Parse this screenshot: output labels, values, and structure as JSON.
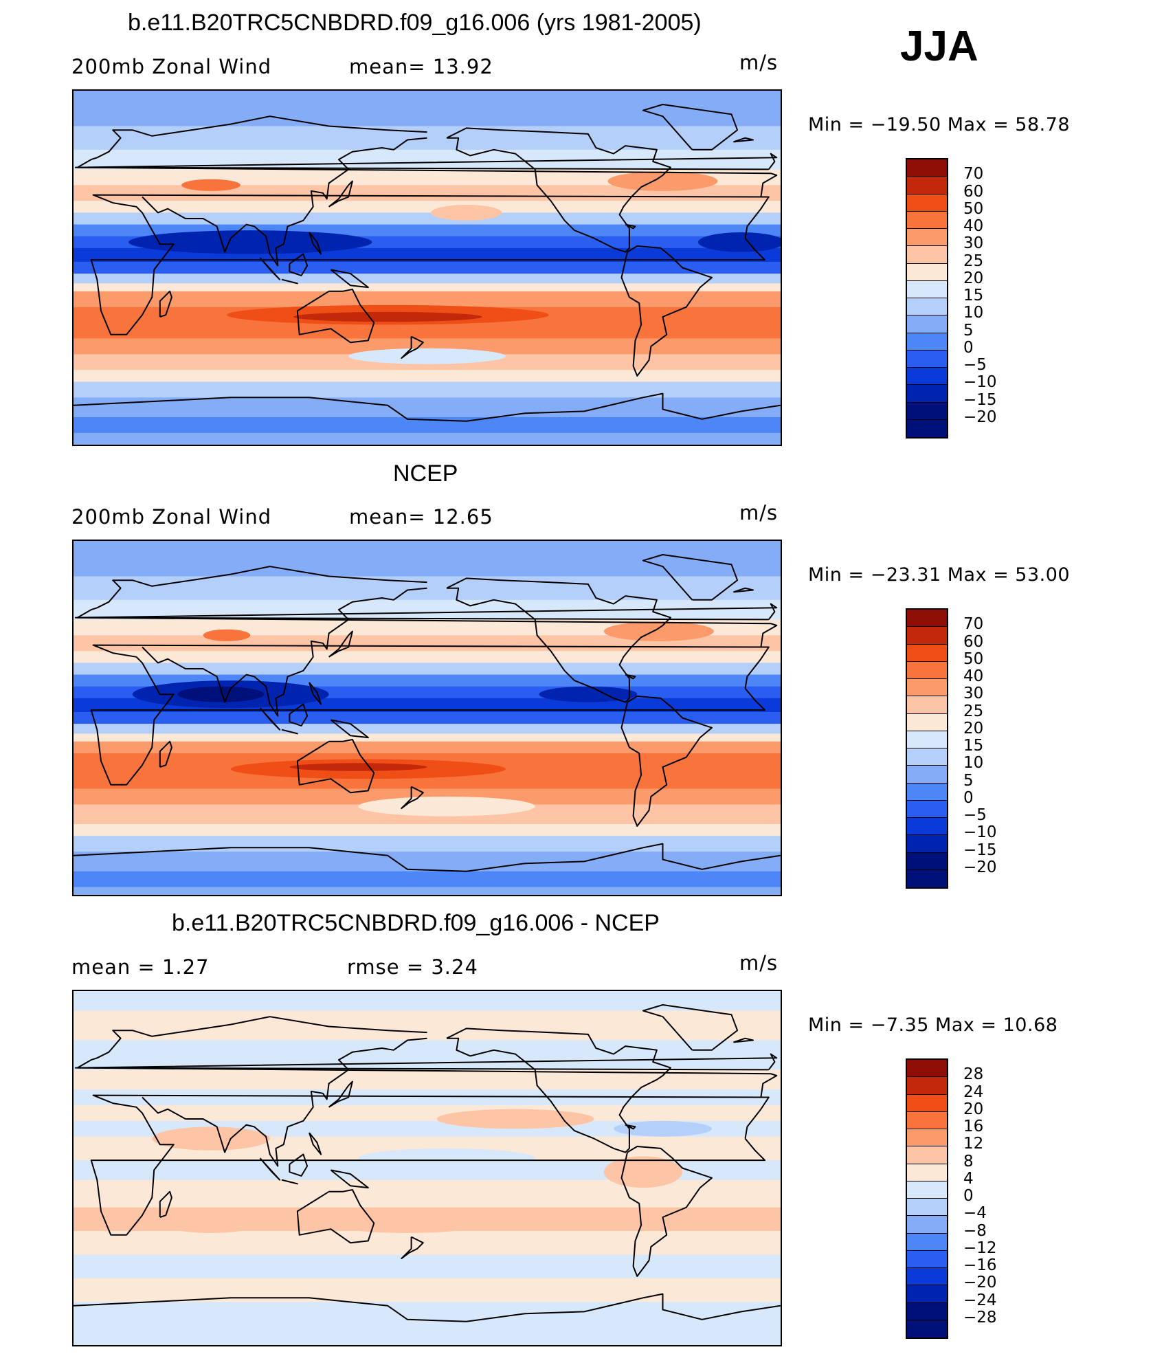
{
  "season": "JJA",
  "colors": {
    "c-20": "#00107a",
    "c-15": "#0024b0",
    "c-10": "#0a3ad8",
    "c-5": "#2a5ef0",
    "c0": "#4d86f6",
    "c5": "#84acf7",
    "c10": "#b4cff9",
    "c15": "#d8e8fb",
    "c20": "#fce8d6",
    "c25": "#fdc5a6",
    "c30": "#fb9b6b",
    "c40": "#f9743c",
    "c50": "#f04e17",
    "c60": "#c4280a",
    "c70": "#8e0d04",
    "coast": "#000000"
  },
  "panels": [
    {
      "title": "b.e11.B20TRC5CNBDRD.f09_g16.006 (yrs 1981-2005)",
      "left_label": "200mb  Zonal  Wind",
      "mid_label": "mean=   13.92",
      "units": "m/s",
      "minmax": "Min  =  −19.50  Max  =    58.78",
      "colorbar_labels": [
        "70",
        "60",
        "50",
        "40",
        "30",
        "25",
        "20",
        "15",
        "10",
        "5",
        "0",
        "−5",
        "−10",
        "−15",
        "−20"
      ]
    },
    {
      "title": "NCEP",
      "left_label": "200mb  Zonal  Wind",
      "mid_label": "mean=   12.65",
      "units": "m/s",
      "minmax": "Min  =  −23.31  Max  =    53.00",
      "colorbar_labels": [
        "70",
        "60",
        "50",
        "40",
        "30",
        "25",
        "20",
        "15",
        "10",
        "5",
        "0",
        "−5",
        "−10",
        "−15",
        "−20"
      ]
    },
    {
      "title": "b.e11.B20TRC5CNBDRD.f09_g16.006 - NCEP",
      "left_label": "mean  =     1.27",
      "mid_label": "rmse  =     3.24",
      "units": "m/s",
      "minmax": "Min  =    −7.35  Max  =    10.68",
      "colorbar_labels": [
        "28",
        "24",
        "20",
        "16",
        "12",
        "8",
        "4",
        "0",
        "−4",
        "−8",
        "−12",
        "−16",
        "−20",
        "−24",
        "−28"
      ]
    }
  ],
  "map_fields": [
    {
      "bands": [
        {
          "lat": 90,
          "level": "c5"
        },
        {
          "lat": 72,
          "level": "c10"
        },
        {
          "lat": 60,
          "level": "c15"
        },
        {
          "lat": 50,
          "level": "c20"
        },
        {
          "lat": 42,
          "level": "c25"
        },
        {
          "lat": 34,
          "level": "c20"
        },
        {
          "lat": 28,
          "level": "c10"
        },
        {
          "lat": 22,
          "level": "c0"
        },
        {
          "lat": 16,
          "level": "c-5"
        },
        {
          "lat": 10,
          "level": "c-10"
        },
        {
          "lat": 3,
          "level": "c-5"
        },
        {
          "lat": -3,
          "level": "c10"
        },
        {
          "lat": -8,
          "level": "c20"
        },
        {
          "lat": -12,
          "level": "c30"
        },
        {
          "lat": -20,
          "level": "c40"
        },
        {
          "lat": -36,
          "level": "c30"
        },
        {
          "lat": -44,
          "level": "c25"
        },
        {
          "lat": -52,
          "level": "c20"
        },
        {
          "lat": -58,
          "level": "c10"
        },
        {
          "lat": -66,
          "level": "c5"
        },
        {
          "lat": -76,
          "level": "c0"
        },
        {
          "lat": -84,
          "level": "c5"
        }
      ],
      "blobs": [
        {
          "lon": 90,
          "lat": 13,
          "rlon": 62,
          "rlat": 6,
          "level": "c-15"
        },
        {
          "lon": 340,
          "lat": 13,
          "rlon": 22,
          "rlat": 5,
          "level": "c-15"
        },
        {
          "lon": 160,
          "lat": -24,
          "rlon": 82,
          "rlat": 5,
          "level": "c50"
        },
        {
          "lon": 160,
          "lat": -25,
          "rlon": 48,
          "rlat": 2.5,
          "level": "c60"
        },
        {
          "lon": 70,
          "lat": 42,
          "rlon": 15,
          "rlat": 3,
          "level": "c40"
        },
        {
          "lon": 300,
          "lat": 44,
          "rlon": 28,
          "rlat": 5,
          "level": "c30"
        },
        {
          "lon": 200,
          "lat": 28,
          "rlon": 18,
          "rlat": 4,
          "level": "c25"
        },
        {
          "lon": 180,
          "lat": -45,
          "rlon": 40,
          "rlat": 4,
          "level": "c15"
        },
        {
          "lon": 180,
          "lat": 55,
          "rlon": 25,
          "rlat": 4,
          "level": "c15"
        }
      ]
    },
    {
      "bands": [
        {
          "lat": 90,
          "level": "c5"
        },
        {
          "lat": 72,
          "level": "c10"
        },
        {
          "lat": 60,
          "level": "c15"
        },
        {
          "lat": 50,
          "level": "c20"
        },
        {
          "lat": 42,
          "level": "c25"
        },
        {
          "lat": 34,
          "level": "c20"
        },
        {
          "lat": 28,
          "level": "c10"
        },
        {
          "lat": 22,
          "level": "c0"
        },
        {
          "lat": 16,
          "level": "c-5"
        },
        {
          "lat": 10,
          "level": "c-10"
        },
        {
          "lat": 3,
          "level": "c-5"
        },
        {
          "lat": -3,
          "level": "c10"
        },
        {
          "lat": -8,
          "level": "c20"
        },
        {
          "lat": -12,
          "level": "c30"
        },
        {
          "lat": -18,
          "level": "c40"
        },
        {
          "lat": -36,
          "level": "c30"
        },
        {
          "lat": -44,
          "level": "c25"
        },
        {
          "lat": -54,
          "level": "c20"
        },
        {
          "lat": -60,
          "level": "c10"
        },
        {
          "lat": -68,
          "level": "c5"
        },
        {
          "lat": -78,
          "level": "c0"
        },
        {
          "lat": -86,
          "level": "c5"
        }
      ],
      "blobs": [
        {
          "lon": 80,
          "lat": 12,
          "rlon": 50,
          "rlat": 7,
          "level": "c-15"
        },
        {
          "lon": 75,
          "lat": 12,
          "rlon": 22,
          "rlat": 4,
          "level": "c-20"
        },
        {
          "lon": 262,
          "lat": 12,
          "rlon": 25,
          "rlat": 4,
          "level": "c-15"
        },
        {
          "lon": 150,
          "lat": -26,
          "rlon": 70,
          "rlat": 5,
          "level": "c50"
        },
        {
          "lon": 145,
          "lat": -25,
          "rlon": 35,
          "rlat": 2,
          "level": "c60"
        },
        {
          "lon": 78,
          "lat": 42,
          "rlon": 12,
          "rlat": 3,
          "level": "c40"
        },
        {
          "lon": 298,
          "lat": 44,
          "rlon": 28,
          "rlat": 5,
          "level": "c30"
        },
        {
          "lon": 190,
          "lat": -45,
          "rlon": 45,
          "rlat": 5,
          "level": "c20"
        }
      ]
    },
    {
      "bands": [
        {
          "lat": 90,
          "level": "c15"
        },
        {
          "lat": 80,
          "level": "c20"
        },
        {
          "lat": 65,
          "level": "c15"
        },
        {
          "lat": 50,
          "level": "c20"
        },
        {
          "lat": 40,
          "level": "c15"
        },
        {
          "lat": 32,
          "level": "c20"
        },
        {
          "lat": 24,
          "level": "c15"
        },
        {
          "lat": 16,
          "level": "c20"
        },
        {
          "lat": 4,
          "level": "c15"
        },
        {
          "lat": -6,
          "level": "c20"
        },
        {
          "lat": -20,
          "level": "c25"
        },
        {
          "lat": -32,
          "level": "c20"
        },
        {
          "lat": -44,
          "level": "c15"
        },
        {
          "lat": -56,
          "level": "c20"
        },
        {
          "lat": -68,
          "level": "c15"
        },
        {
          "lat": -80,
          "level": "c15"
        }
      ],
      "blobs": [
        {
          "lon": 70,
          "lat": 15,
          "rlon": 30,
          "rlat": 6,
          "level": "c25"
        },
        {
          "lon": 290,
          "lat": -2,
          "rlon": 20,
          "rlat": 8,
          "level": "c25"
        },
        {
          "lon": 70,
          "lat": -30,
          "rlon": 20,
          "rlat": 3,
          "level": "c25"
        },
        {
          "lon": 170,
          "lat": -28,
          "rlon": 40,
          "rlat": 5,
          "level": "c25"
        },
        {
          "lon": 225,
          "lat": 25,
          "rlon": 40,
          "rlat": 5,
          "level": "c25"
        },
        {
          "lon": 190,
          "lat": 5,
          "rlon": 45,
          "rlat": 5,
          "level": "c15"
        },
        {
          "lon": 300,
          "lat": 20,
          "rlon": 25,
          "rlat": 4,
          "level": "c10"
        }
      ]
    }
  ],
  "coastlines": [
    [
      [
        -18,
        15
      ],
      [
        -17,
        21
      ],
      [
        -10,
        30
      ],
      [
        -6,
        36
      ],
      [
        10,
        37
      ],
      [
        20,
        33
      ],
      [
        32,
        31
      ],
      [
        35,
        28
      ],
      [
        44,
        12
      ],
      [
        51,
        12
      ],
      [
        41,
        -1
      ],
      [
        40,
        -15
      ],
      [
        35,
        -24
      ],
      [
        27,
        -34
      ],
      [
        19,
        -34
      ],
      [
        14,
        -22
      ],
      [
        12,
        -6
      ],
      [
        9,
        4
      ],
      [
        -8,
        4
      ],
      [
        -13,
        9
      ],
      [
        -18,
        15
      ]
    ],
    [
      [
        -10,
        36
      ],
      [
        -9,
        43
      ],
      [
        -2,
        47
      ],
      [
        -5,
        48
      ],
      [
        2,
        51
      ],
      [
        9,
        55
      ],
      [
        12,
        56
      ],
      [
        18,
        59
      ],
      [
        24,
        66
      ],
      [
        20,
        70
      ],
      [
        30,
        70
      ],
      [
        40,
        67
      ],
      [
        60,
        70
      ],
      [
        80,
        73
      ],
      [
        100,
        77
      ],
      [
        130,
        72
      ],
      [
        160,
        70
      ],
      [
        180,
        69
      ]
    ],
    [
      [
        35,
        36
      ],
      [
        43,
        28
      ],
      [
        48,
        30
      ],
      [
        57,
        25
      ],
      [
        66,
        25
      ],
      [
        73,
        21
      ],
      [
        77,
        8
      ],
      [
        80,
        15
      ],
      [
        88,
        22
      ],
      [
        92,
        21
      ],
      [
        98,
        16
      ],
      [
        100,
        7
      ],
      [
        104,
        1
      ],
      [
        103,
        10
      ],
      [
        107,
        12
      ],
      [
        109,
        21
      ],
      [
        117,
        24
      ],
      [
        122,
        31
      ],
      [
        121,
        39
      ],
      [
        127,
        38
      ],
      [
        129,
        35
      ],
      [
        130,
        43
      ],
      [
        140,
        50
      ],
      [
        135,
        55
      ],
      [
        142,
        59
      ],
      [
        157,
        61
      ],
      [
        163,
        60
      ],
      [
        170,
        65
      ],
      [
        180,
        66
      ]
    ],
    [
      [
        130,
        -12
      ],
      [
        137,
        -12
      ],
      [
        142,
        -11
      ],
      [
        146,
        -19
      ],
      [
        153,
        -28
      ],
      [
        150,
        -37
      ],
      [
        141,
        -38
      ],
      [
        131,
        -31
      ],
      [
        115,
        -34
      ],
      [
        114,
        -22
      ],
      [
        122,
        -17
      ],
      [
        130,
        -12
      ]
    ],
    [
      [
        190,
        66
      ],
      [
        196,
        66
      ],
      [
        195,
        60
      ],
      [
        202,
        57
      ],
      [
        214,
        60
      ],
      [
        225,
        58
      ],
      [
        235,
        50
      ],
      [
        236,
        42
      ],
      [
        243,
        34
      ],
      [
        250,
        24
      ],
      [
        255,
        19
      ],
      [
        265,
        15
      ],
      [
        275,
        10
      ],
      [
        281,
        8
      ],
      [
        283,
        10
      ],
      [
        283,
        20
      ],
      [
        278,
        27
      ],
      [
        280,
        31
      ],
      [
        284,
        36
      ],
      [
        289,
        41
      ],
      [
        293,
        43
      ],
      [
        297,
        45
      ],
      [
        300,
        47
      ],
      [
        304,
        51
      ],
      [
        295,
        54
      ],
      [
        297,
        60
      ],
      [
        281,
        62
      ],
      [
        275,
        58
      ],
      [
        266,
        61
      ],
      [
        262,
        68
      ],
      [
        242,
        69
      ],
      [
        218,
        70
      ],
      [
        200,
        71
      ],
      [
        190,
        66
      ]
    ],
    [
      [
        282,
        8
      ],
      [
        287,
        11
      ],
      [
        299,
        10
      ],
      [
        305,
        5
      ],
      [
        310,
        0
      ],
      [
        325,
        -5
      ],
      [
        319,
        -10
      ],
      [
        312,
        -20
      ],
      [
        300,
        -25
      ],
      [
        302,
        -34
      ],
      [
        294,
        -40
      ],
      [
        293,
        -47
      ],
      [
        287,
        -55
      ],
      [
        285,
        -50
      ],
      [
        286,
        -37
      ],
      [
        289,
        -29
      ],
      [
        288,
        -18
      ],
      [
        283,
        -15
      ],
      [
        279,
        -5
      ],
      [
        282,
        8
      ]
    ],
    [
      [
        315,
        60
      ],
      [
        325,
        60
      ],
      [
        338,
        70
      ],
      [
        335,
        78
      ],
      [
        300,
        83
      ],
      [
        290,
        80
      ],
      [
        300,
        77
      ],
      [
        315,
        60
      ]
    ],
    [
      [
        0,
        -70
      ],
      [
        40,
        -68
      ],
      [
        80,
        -66
      ],
      [
        120,
        -66
      ],
      [
        160,
        -70
      ],
      [
        170,
        -77
      ],
      [
        200,
        -78
      ],
      [
        230,
        -74
      ],
      [
        260,
        -73
      ],
      [
        290,
        -66
      ],
      [
        300,
        -64
      ],
      [
        300,
        -72
      ],
      [
        320,
        -77
      ],
      [
        340,
        -73
      ],
      [
        360,
        -70
      ]
    ],
    [
      [
        172,
        -35
      ],
      [
        178,
        -38
      ],
      [
        175,
        -41
      ],
      [
        171,
        -43
      ],
      [
        167,
        -46
      ],
      [
        172,
        -41
      ],
      [
        172,
        -35
      ]
    ],
    [
      [
        44,
        -25
      ],
      [
        47,
        -24
      ],
      [
        50,
        -15
      ],
      [
        49,
        -12
      ],
      [
        44,
        -17
      ],
      [
        44,
        -25
      ]
    ],
    [
      [
        95,
        5
      ],
      [
        105,
        -6
      ],
      [
        101,
        -2
      ],
      [
        95,
        5
      ]
    ],
    [
      [
        106,
        -6
      ],
      [
        114,
        -8
      ],
      [
        110,
        -7
      ],
      [
        106,
        -6
      ]
    ],
    [
      [
        110,
        2
      ],
      [
        117,
        7
      ],
      [
        119,
        1
      ],
      [
        116,
        -4
      ],
      [
        110,
        -2
      ],
      [
        110,
        2
      ]
    ],
    [
      [
        131,
        -1
      ],
      [
        141,
        -3
      ],
      [
        150,
        -10
      ],
      [
        141,
        -9
      ],
      [
        131,
        -1
      ]
    ],
    [
      [
        120,
        18
      ],
      [
        122,
        12
      ],
      [
        126,
        7
      ],
      [
        124,
        13
      ],
      [
        120,
        18
      ]
    ],
    [
      [
        130,
        31
      ],
      [
        135,
        34
      ],
      [
        140,
        36
      ],
      [
        141,
        40
      ],
      [
        142,
        44
      ],
      [
        140,
        42
      ],
      [
        135,
        35
      ],
      [
        130,
        31
      ]
    ],
    [
      [
        -6,
        50
      ],
      [
        1,
        51
      ],
      [
        -2,
        56
      ],
      [
        -5,
        58
      ],
      [
        -3,
        54
      ],
      [
        -6,
        50
      ]
    ],
    [
      [
        -24,
        64
      ],
      [
        -14,
        65
      ],
      [
        -18,
        66
      ],
      [
        -24,
        64
      ]
    ],
    [
      [
        281,
        22
      ],
      [
        285,
        20
      ],
      [
        286,
        21
      ],
      [
        281,
        22
      ]
    ]
  ]
}
